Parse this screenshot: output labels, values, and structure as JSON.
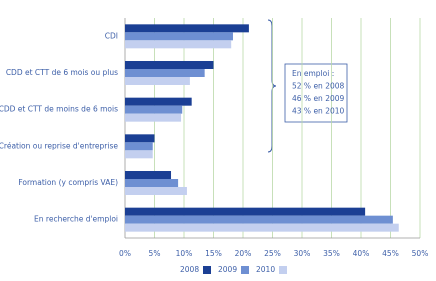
{
  "chart_data": {
    "type": "bar",
    "orientation": "horizontal",
    "categories": [
      "CDI",
      "CDD et CTT de 6 mois ou plus",
      "CDD et CTT de moins de 6 mois",
      "Création ou reprise d'entreprise",
      "Formation (y compris VAE)",
      "En recherche d'emploi"
    ],
    "series": [
      {
        "name": "2008",
        "color": "#1b3f94",
        "values": [
          21,
          15,
          11.3,
          5,
          7.8,
          40.7
        ]
      },
      {
        "name": "2009",
        "color": "#6e8fd2",
        "values": [
          18.3,
          13.5,
          9.7,
          4.7,
          9,
          45.4
        ]
      },
      {
        "name": "2010",
        "color": "#c3cfef",
        "values": [
          18,
          11,
          9.5,
          4.7,
          10.5,
          46.4
        ]
      }
    ],
    "xlim": [
      0,
      50
    ],
    "xticks": [
      {
        "value": 0,
        "label": "0%"
      },
      {
        "value": 5,
        "label": "5%"
      },
      {
        "value": 10,
        "label": "10%"
      },
      {
        "value": 15,
        "label": "15%"
      },
      {
        "value": 20,
        "label": "20%"
      },
      {
        "value": 25,
        "label": "25%"
      },
      {
        "value": 30,
        "label": "30%"
      },
      {
        "value": 35,
        "label": "35%"
      },
      {
        "value": 40,
        "label": "40%"
      },
      {
        "value": 45,
        "label": "45%"
      },
      {
        "value": 50,
        "label": "50%"
      }
    ],
    "grid": true,
    "annotation": [
      "En emploi :",
      "52 % en 2008",
      "46 % en 2009",
      "43 % en 2010"
    ]
  }
}
